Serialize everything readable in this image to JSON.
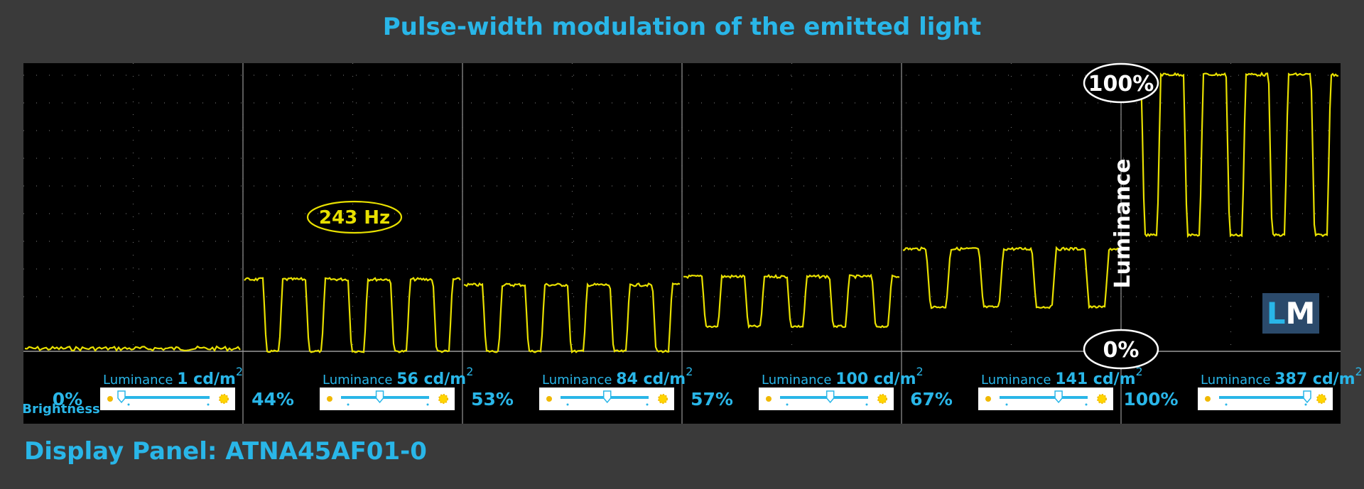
{
  "title": "Pulse-width modulation of the emitted light",
  "footer": "Display Panel: ATNA45AF01-0",
  "colors": {
    "accent": "#29b6e8",
    "trace": "#e8e000",
    "background": "#3a3a3a",
    "plot": "#000000"
  },
  "chart_data": {
    "type": "line",
    "title": "Pulse-width modulation of the emitted light",
    "frequency_label": "243 Hz",
    "ylabel": "Luminance",
    "y_top_label": "100%",
    "y_bottom_label": "0%",
    "ylim": [
      0,
      100
    ],
    "grid": true,
    "logo": "LM",
    "brightness_caption": "Brightness",
    "luminance_caption": "Luminance",
    "series": [
      {
        "brightness": "0%",
        "brightness_value": 0,
        "luminance_value": "1",
        "unit": "cd/m",
        "unit_sup": "2",
        "pwm_high": 1,
        "pwm_low": 0,
        "pulses": 0
      },
      {
        "brightness": "44%",
        "brightness_value": 44,
        "luminance_value": "56",
        "unit": "cd/m",
        "unit_sup": "2",
        "pwm_high": 26,
        "pwm_low": 0,
        "pulses": 5
      },
      {
        "brightness": "53%",
        "brightness_value": 53,
        "luminance_value": "84",
        "unit": "cd/m",
        "unit_sup": "2",
        "pwm_high": 24,
        "pwm_low": 0,
        "pulses": 5
      },
      {
        "brightness": "57%",
        "brightness_value": 57,
        "luminance_value": "100",
        "unit": "cd/m",
        "unit_sup": "2",
        "pwm_high": 27,
        "pwm_low": 9,
        "pulses": 5
      },
      {
        "brightness": "67%",
        "brightness_value": 67,
        "luminance_value": "141",
        "unit": "cd/m",
        "unit_sup": "2",
        "pwm_high": 37,
        "pwm_low": 16,
        "pulses": 4
      },
      {
        "brightness": "100%",
        "brightness_value": 100,
        "luminance_value": "387",
        "unit": "cd/m",
        "unit_sup": "2",
        "pwm_high": 100,
        "pwm_low": 42,
        "pulses": 5
      }
    ]
  }
}
